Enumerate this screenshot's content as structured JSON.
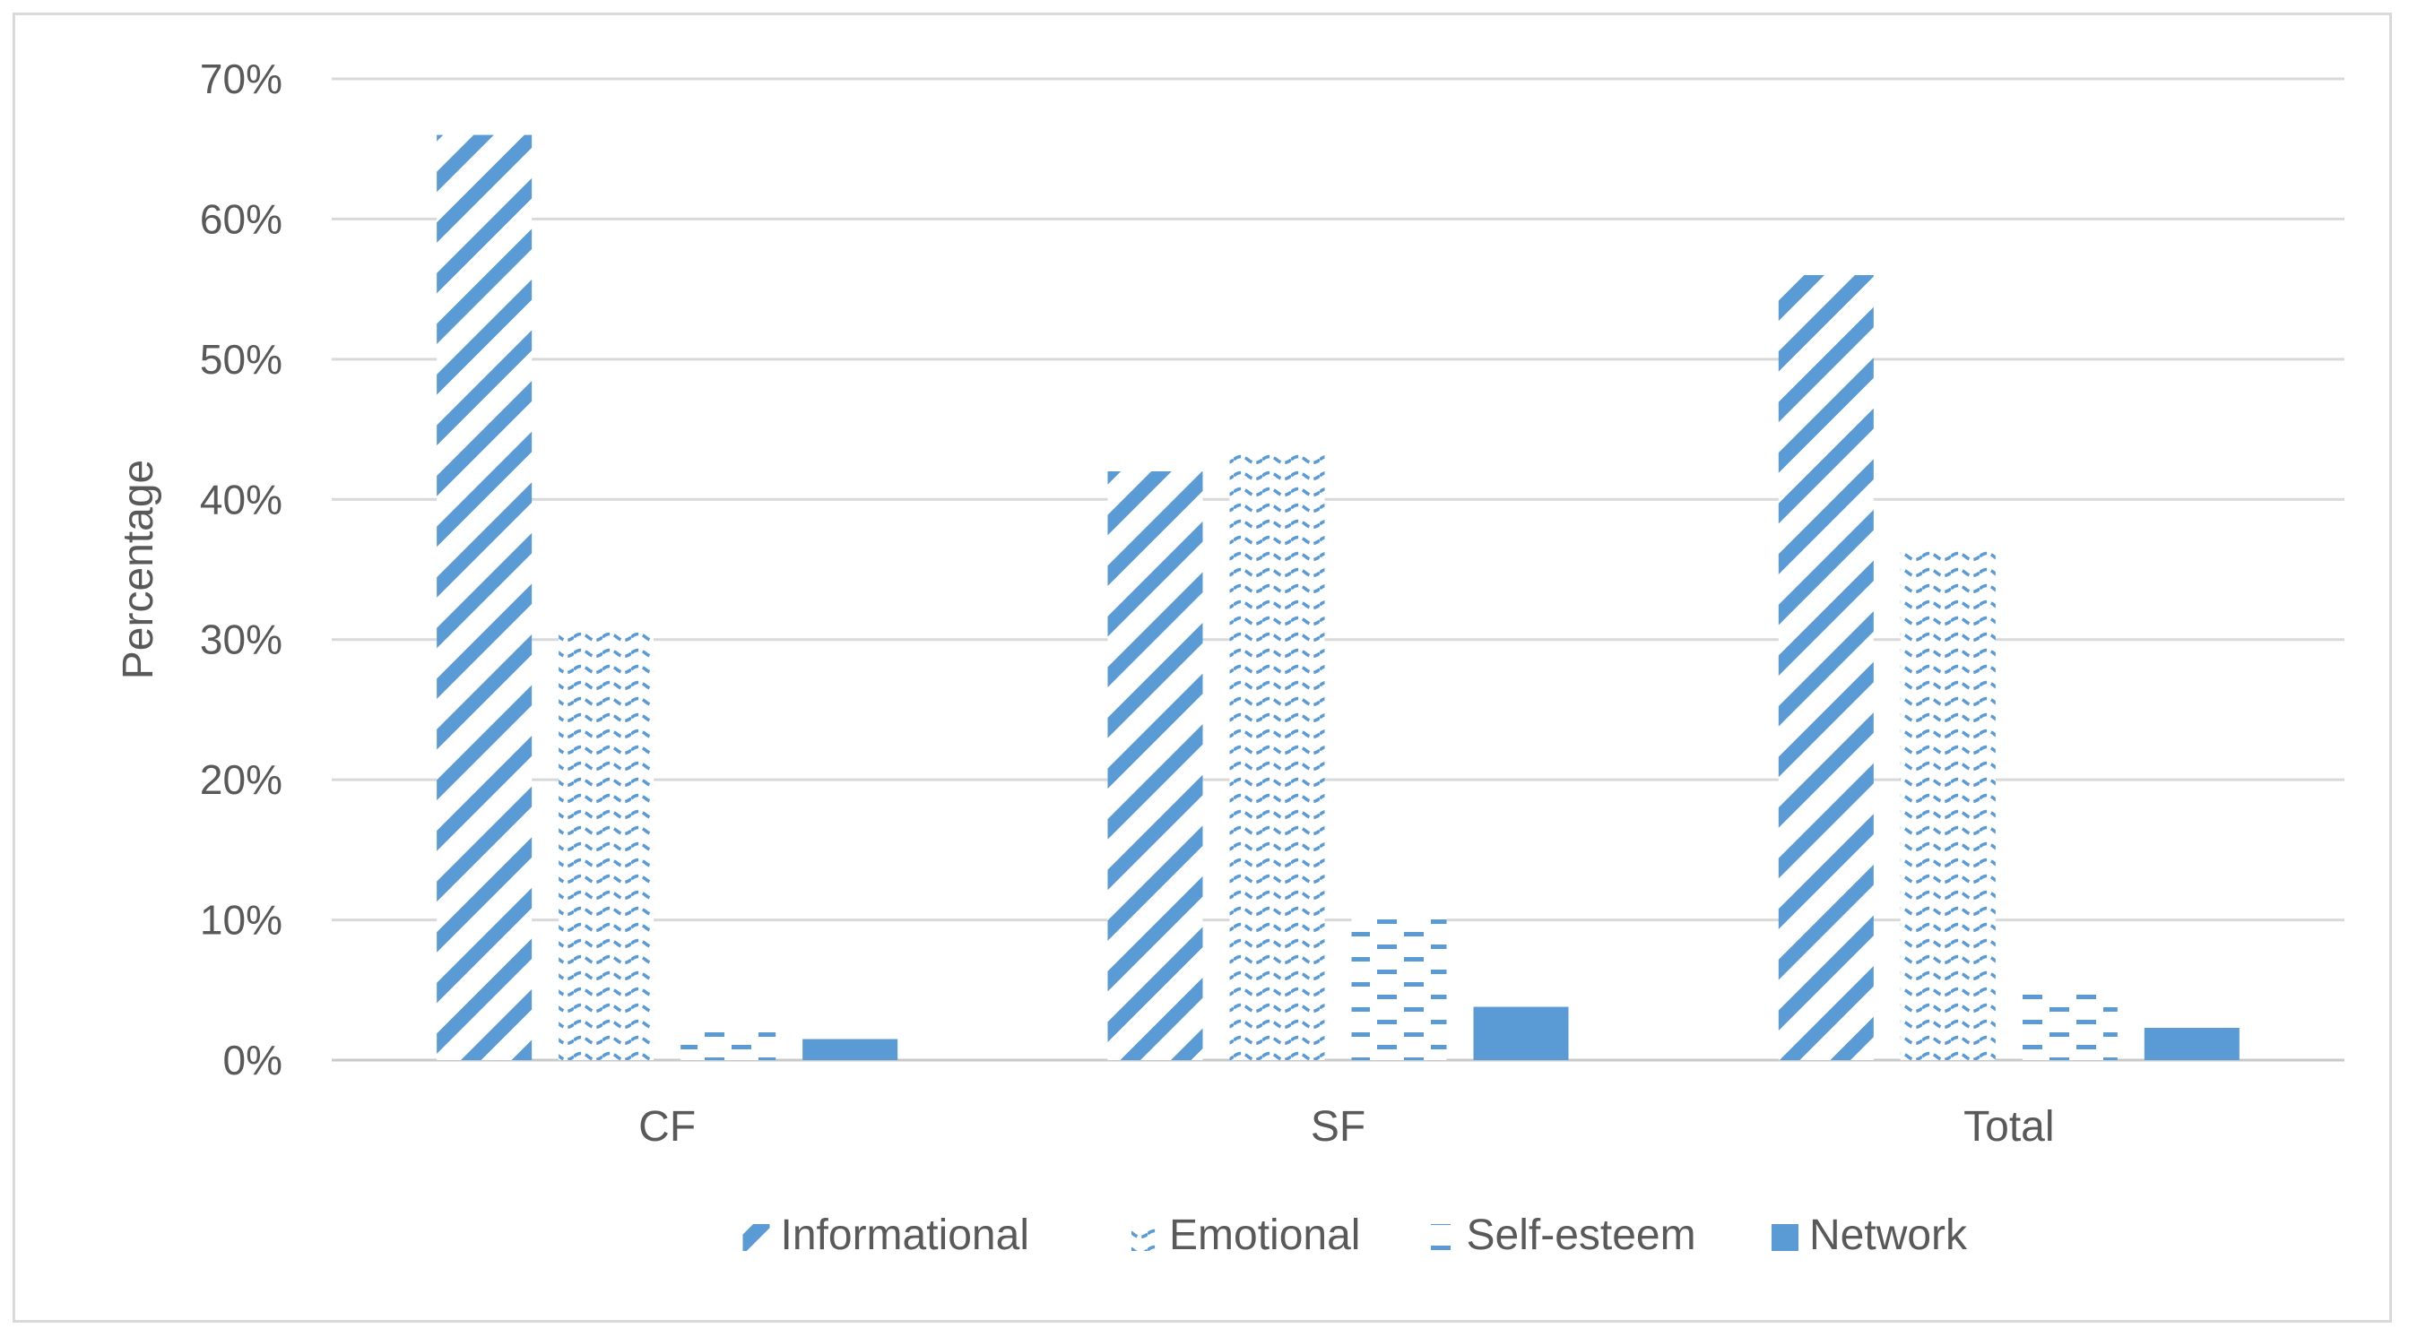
{
  "chart_data": {
    "type": "bar",
    "title": "",
    "xlabel": "",
    "ylabel": "Percentage",
    "ylim": [
      0,
      70
    ],
    "y_ticks": [
      "0%",
      "10%",
      "20%",
      "30%",
      "40%",
      "50%",
      "60%",
      "70%"
    ],
    "y_tick_values": [
      0,
      10,
      20,
      30,
      40,
      50,
      60,
      70
    ],
    "grid": true,
    "legend_position": "bottom",
    "categories": [
      "CF",
      "SF",
      "Total"
    ],
    "series": [
      {
        "name": "Informational",
        "values": [
          66,
          42,
          56
        ],
        "pattern": "diagonal-stripes",
        "color": "#5b9bd5"
      },
      {
        "name": "Emotional",
        "values": [
          30.5,
          43.5,
          36.5
        ],
        "pattern": "waves",
        "color": "#5b9bd5"
      },
      {
        "name": "Self-esteem",
        "values": [
          2,
          10.5,
          5
        ],
        "pattern": "dashes",
        "color": "#5b9bd5"
      },
      {
        "name": "Network",
        "values": [
          1.5,
          3.8,
          2.3
        ],
        "pattern": "solid",
        "color": "#5b9bd5"
      }
    ]
  }
}
